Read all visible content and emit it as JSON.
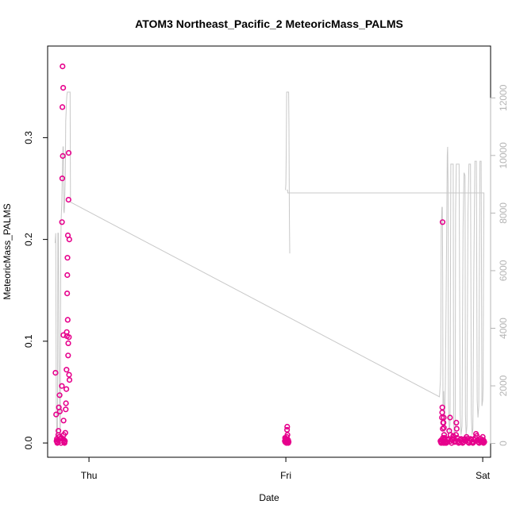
{
  "chart_data": {
    "type": "scatter",
    "title": "ATOM3 Northeast_Pacific_2 MeteoricMass_PALMS",
    "xlabel": "Date",
    "ylabel": "MeteoricMass_PALMS",
    "x_ticks": [
      {
        "label": "Thu",
        "value": 0.0
      },
      {
        "label": "Fri",
        "value": 1.0
      },
      {
        "label": "Sat",
        "value": 2.0
      }
    ],
    "y_ticks": [
      0.0,
      0.1,
      0.2,
      0.3
    ],
    "y_tick_labels": [
      "0.0",
      "0.1",
      "0.2",
      "0.3"
    ],
    "y_range": [
      -0.014,
      0.39
    ],
    "x_range": [
      -0.21,
      2.04
    ],
    "right_axis": {
      "ticks": [
        0,
        2000,
        4000,
        6000,
        8000,
        10000,
        12000
      ],
      "tick_labels": [
        "0",
        "2000",
        "4000",
        "6000",
        "8000",
        "10000",
        "12000"
      ],
      "range": [
        -480,
        13800
      ],
      "color": "#b4b4b4"
    },
    "series": [
      {
        "color": "#e6008c",
        "marker": "circle-open",
        "points": [
          [
            -0.17,
            0.069
          ],
          [
            -0.167,
            0.028
          ],
          [
            -0.165,
            0.002
          ],
          [
            -0.163,
            0.004
          ],
          [
            -0.161,
            0.0
          ],
          [
            -0.159,
            0.001
          ],
          [
            -0.157,
            0.003
          ],
          [
            -0.156,
            0.008
          ],
          [
            -0.155,
            0.012
          ],
          [
            -0.153,
            0.035
          ],
          [
            -0.151,
            0.006
          ],
          [
            -0.149,
            0.047
          ],
          [
            -0.148,
            0.031
          ],
          [
            -0.146,
            0.002
          ],
          [
            -0.144,
            0.004
          ],
          [
            -0.142,
            0.0
          ],
          [
            -0.14,
            0.005
          ],
          [
            -0.138,
            0.056
          ],
          [
            -0.137,
            0.217
          ],
          [
            -0.136,
            0.26
          ],
          [
            -0.135,
            0.33
          ],
          [
            -0.134,
            0.37
          ],
          [
            -0.133,
            0.282
          ],
          [
            -0.131,
            0.349
          ],
          [
            -0.13,
            0.106
          ],
          [
            -0.129,
            0.022
          ],
          [
            -0.128,
            0.008
          ],
          [
            -0.127,
            0.003
          ],
          [
            -0.125,
            0.001
          ],
          [
            -0.124,
            0.0
          ],
          [
            -0.122,
            0.002
          ],
          [
            -0.12,
            0.01
          ],
          [
            -0.118,
            0.033
          ],
          [
            -0.117,
            0.039
          ],
          [
            -0.115,
            0.053
          ],
          [
            -0.114,
            0.072
          ],
          [
            -0.113,
            0.109
          ],
          [
            -0.112,
            0.105
          ],
          [
            -0.111,
            0.147
          ],
          [
            -0.11,
            0.165
          ],
          [
            -0.109,
            0.182
          ],
          [
            -0.108,
            0.121
          ],
          [
            -0.107,
            0.204
          ],
          [
            -0.106,
            0.086
          ],
          [
            -0.105,
            0.098
          ],
          [
            -0.104,
            0.239
          ],
          [
            -0.103,
            0.285
          ],
          [
            -0.102,
            0.104
          ],
          [
            -0.101,
            0.067
          ],
          [
            -0.1,
            0.2
          ],
          [
            -0.099,
            0.062
          ],
          [
            0.995,
            0.002
          ],
          [
            0.996,
            0.005
          ],
          [
            0.997,
            0.001
          ],
          [
            0.998,
            0.003
          ],
          [
            0.999,
            0.004
          ],
          [
            1.0,
            0.003
          ],
          [
            1.001,
            0.002
          ],
          [
            1.002,
            0.001
          ],
          [
            1.003,
            0.0
          ],
          [
            1.004,
            0.002
          ],
          [
            1.005,
            0.006
          ],
          [
            1.006,
            0.013
          ],
          [
            1.007,
            0.016
          ],
          [
            1.008,
            0.008
          ],
          [
            1.009,
            0.002
          ],
          [
            1.01,
            0.001
          ],
          [
            1.011,
            0.003
          ],
          [
            1.012,
            0.0
          ],
          [
            1.013,
            0.002
          ],
          [
            1.014,
            0.001
          ],
          [
            1.785,
            0.002
          ],
          [
            1.787,
            0.001
          ],
          [
            1.789,
            0.0
          ],
          [
            1.791,
            0.003
          ],
          [
            1.793,
            0.025
          ],
          [
            1.794,
            0.03
          ],
          [
            1.795,
            0.035
          ],
          [
            1.796,
            0.217
          ],
          [
            1.797,
            0.014
          ],
          [
            1.798,
            0.005
          ],
          [
            1.799,
            0.02
          ],
          [
            1.8,
            0.0
          ],
          [
            1.801,
            0.02
          ],
          [
            1.802,
            0.025
          ],
          [
            1.803,
            0.015
          ],
          [
            1.804,
            0.008
          ],
          [
            1.805,
            0.003
          ],
          [
            1.806,
            0.005
          ],
          [
            1.807,
            0.004
          ],
          [
            1.808,
            0.0
          ],
          [
            1.81,
            0.001
          ],
          [
            1.812,
            0.002
          ],
          [
            1.815,
            0.0
          ],
          [
            1.818,
            0.001
          ],
          [
            1.822,
            0.003
          ],
          [
            1.826,
            0.004
          ],
          [
            1.83,
            0.012
          ],
          [
            1.834,
            0.025
          ],
          [
            1.836,
            0.008
          ],
          [
            1.838,
            0.002
          ],
          [
            1.842,
            0.0
          ],
          [
            1.846,
            0.003
          ],
          [
            1.85,
            0.007
          ],
          [
            1.854,
            0.004
          ],
          [
            1.858,
            0.001
          ],
          [
            1.86,
            0.002
          ],
          [
            1.864,
            0.008
          ],
          [
            1.866,
            0.02
          ],
          [
            1.868,
            0.014
          ],
          [
            1.87,
            0.005
          ],
          [
            1.874,
            0.002
          ],
          [
            1.878,
            0.0
          ],
          [
            1.882,
            0.001
          ],
          [
            1.886,
            0.003
          ],
          [
            1.89,
            0.004
          ],
          [
            1.894,
            0.002
          ],
          [
            1.898,
            0.0
          ],
          [
            1.902,
            0.001
          ],
          [
            1.906,
            0.003
          ],
          [
            1.91,
            0.004
          ],
          [
            1.914,
            0.002
          ],
          [
            1.918,
            0.006
          ],
          [
            1.922,
            0.004
          ],
          [
            1.926,
            0.001
          ],
          [
            1.93,
            0.0
          ],
          [
            1.934,
            0.002
          ],
          [
            1.938,
            0.004
          ],
          [
            1.942,
            0.003
          ],
          [
            1.946,
            0.001
          ],
          [
            1.95,
            0.0
          ],
          [
            1.954,
            0.001
          ],
          [
            1.958,
            0.003
          ],
          [
            1.962,
            0.005
          ],
          [
            1.966,
            0.009
          ],
          [
            1.97,
            0.007
          ],
          [
            1.974,
            0.003
          ],
          [
            1.978,
            0.001
          ],
          [
            1.982,
            0.0
          ],
          [
            1.986,
            0.002
          ],
          [
            1.99,
            0.004
          ],
          [
            1.994,
            0.002
          ],
          [
            1.998,
            0.001
          ],
          [
            2.0,
            0.006
          ],
          [
            2.002,
            0.003
          ],
          [
            2.004,
            0.0
          ],
          [
            2.006,
            0.002
          ],
          [
            2.008,
            0.001
          ]
        ]
      },
      {
        "color": "#c8c8c8",
        "axis": "right",
        "type": "line",
        "points": [
          [
            -0.172,
            6960
          ],
          [
            -0.169,
            7300
          ],
          [
            -0.166,
            1200
          ],
          [
            -0.163,
            300
          ],
          [
            -0.16,
            250
          ],
          [
            -0.158,
            7300
          ],
          [
            -0.155,
            7300
          ],
          [
            -0.152,
            2800
          ],
          [
            -0.149,
            1100
          ],
          [
            -0.146,
            200
          ],
          [
            -0.143,
            7000
          ],
          [
            -0.141,
            7800
          ],
          [
            -0.138,
            8400
          ],
          [
            -0.136,
            9200
          ],
          [
            -0.134,
            9700
          ],
          [
            -0.132,
            10300
          ],
          [
            -0.13,
            10300
          ],
          [
            -0.128,
            8100
          ],
          [
            -0.126,
            8000
          ],
          [
            -0.124,
            8200
          ],
          [
            -0.122,
            8800
          ],
          [
            -0.12,
            9400
          ],
          [
            -0.118,
            11200
          ],
          [
            -0.116,
            11500
          ],
          [
            -0.114,
            11900
          ],
          [
            -0.112,
            12100
          ],
          [
            -0.11,
            12200
          ],
          [
            -0.107,
            12200
          ],
          [
            -0.104,
            12200
          ],
          [
            -0.098,
            12200
          ],
          [
            -0.096,
            12200
          ],
          [
            -0.094,
            8380
          ],
          [
            1.78,
            1620
          ],
          [
            1.782,
            1800
          ],
          [
            1.785,
            2200
          ],
          [
            1.787,
            3000
          ],
          [
            1.789,
            7500
          ],
          [
            1.791,
            7800
          ],
          [
            1.793,
            8200
          ],
          [
            1.795,
            8200
          ],
          [
            1.797,
            5500
          ],
          [
            1.798,
            1300
          ],
          [
            1.8,
            1800
          ],
          [
            1.802,
            1800
          ],
          [
            1.804,
            900
          ],
          [
            1.806,
            300
          ],
          [
            1.81,
            2000
          ],
          [
            1.814,
            5000
          ],
          [
            1.818,
            8200
          ],
          [
            1.82,
            10000
          ],
          [
            1.822,
            10300
          ],
          [
            1.824,
            9000
          ],
          [
            1.826,
            1500
          ],
          [
            1.83,
            400
          ],
          [
            1.834,
            700
          ],
          [
            1.836,
            5000
          ],
          [
            1.838,
            9700
          ],
          [
            1.84,
            9700
          ],
          [
            1.85,
            9700
          ],
          [
            1.852,
            800
          ],
          [
            1.856,
            200
          ],
          [
            1.86,
            600
          ],
          [
            1.862,
            8000
          ],
          [
            1.866,
            9700
          ],
          [
            1.88,
            9700
          ],
          [
            1.885,
            1000
          ],
          [
            1.89,
            300
          ],
          [
            1.895,
            600
          ],
          [
            1.9,
            7500
          ],
          [
            1.905,
            9400
          ],
          [
            1.91,
            9300
          ],
          [
            1.912,
            1000
          ],
          [
            1.916,
            300
          ],
          [
            1.92,
            600
          ],
          [
            1.925,
            8000
          ],
          [
            1.93,
            9700
          ],
          [
            1.938,
            9700
          ],
          [
            1.942,
            1000
          ],
          [
            1.946,
            300
          ],
          [
            1.95,
            500
          ],
          [
            1.955,
            6000
          ],
          [
            1.96,
            9800
          ],
          [
            1.968,
            9800
          ],
          [
            1.972,
            1500
          ],
          [
            1.976,
            900
          ],
          [
            1.98,
            1300
          ],
          [
            1.986,
            9800
          ],
          [
            1.992,
            9800
          ],
          [
            1.996,
            1300
          ],
          [
            2.0,
            1500
          ],
          [
            2.002,
            2000
          ],
          [
            2.004,
            6000
          ],
          [
            2.006,
            8700
          ],
          [
            1.01,
            8700
          ],
          [
            1.008,
            8800
          ],
          [
            1.006,
            8800
          ],
          [
            1.004,
            8800
          ]
        ]
      },
      {
        "color": "#c8c8c8",
        "axis": "right",
        "type": "line",
        "points": [
          [
            0.998,
            8800
          ],
          [
            1.0,
            9000
          ],
          [
            1.002,
            10200
          ],
          [
            1.004,
            12200
          ],
          [
            1.006,
            12200
          ],
          [
            1.01,
            12200
          ],
          [
            1.014,
            12200
          ],
          [
            1.016,
            11000
          ],
          [
            1.018,
            8000
          ],
          [
            1.02,
            6600
          ]
        ]
      }
    ]
  }
}
